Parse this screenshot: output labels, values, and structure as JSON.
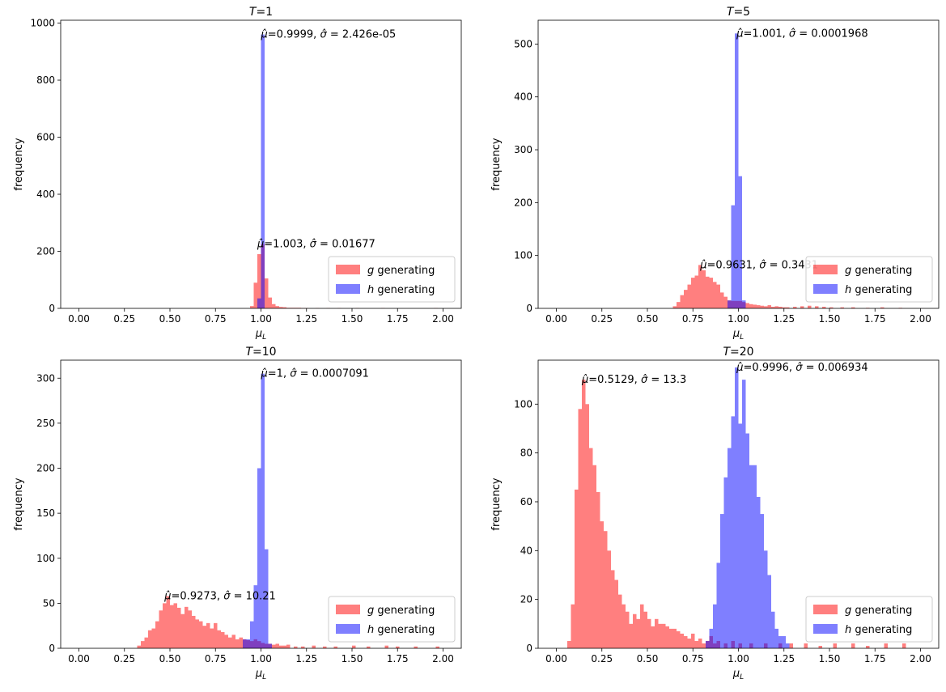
{
  "chart_data": [
    {
      "type": "histogram",
      "title": "T=1",
      "xlabel": "μ_L",
      "ylabel": "frequency",
      "xlim": [
        -0.1,
        2.1
      ],
      "ylim": [
        0,
        1010
      ],
      "xticks": [
        "0.00",
        "0.25",
        "0.50",
        "0.75",
        "1.00",
        "1.25",
        "1.50",
        "1.75",
        "2.00"
      ],
      "yticks": [
        "0",
        "200",
        "400",
        "600",
        "800",
        "1000"
      ],
      "legend": {
        "position": "lower right",
        "entries": [
          "g generating",
          "h generating"
        ]
      },
      "series": [
        {
          "name": "g generating",
          "color": "#ff0000",
          "alpha": 0.5,
          "bin_width": 0.02,
          "bins": [
            [
              0.94,
              8
            ],
            [
              0.96,
              90
            ],
            [
              0.98,
              190
            ],
            [
              1.0,
              225
            ],
            [
              1.02,
              105
            ],
            [
              1.04,
              38
            ],
            [
              1.06,
              15
            ],
            [
              1.08,
              8
            ],
            [
              1.1,
              5
            ],
            [
              1.12,
              4
            ],
            [
              1.14,
              2
            ],
            [
              1.16,
              2
            ],
            [
              1.18,
              2
            ],
            [
              1.2,
              2
            ],
            [
              1.22,
              1
            ],
            [
              1.24,
              1
            ],
            [
              1.3,
              1
            ],
            [
              1.36,
              1
            ],
            [
              1.42,
              1
            ],
            [
              1.52,
              1
            ],
            [
              1.66,
              1
            ],
            [
              1.95,
              1
            ]
          ]
        },
        {
          "name": "h generating",
          "color": "#0000ff",
          "alpha": 0.5,
          "bin_width": 0.02,
          "bins": [
            [
              0.98,
              35
            ],
            [
              1.0,
              960
            ]
          ]
        }
      ],
      "annotations": [
        {
          "text": "μ̂=0.9999, σ̂ = 2.426e-05",
          "x": 1.0,
          "y": 960
        },
        {
          "text": "μ̂=1.003, σ̂ = 0.01677",
          "x": 0.98,
          "y": 225
        }
      ]
    },
    {
      "type": "histogram",
      "title": "T=5",
      "xlabel": "μ_L",
      "ylabel": "frequency",
      "xlim": [
        -0.1,
        2.1
      ],
      "ylim": [
        0,
        545
      ],
      "xticks": [
        "0.00",
        "0.25",
        "0.50",
        "0.75",
        "1.00",
        "1.25",
        "1.50",
        "1.75",
        "2.00"
      ],
      "yticks": [
        "0",
        "100",
        "200",
        "300",
        "400",
        "500"
      ],
      "legend": {
        "position": "lower right",
        "entries": [
          "g generating",
          "h generating"
        ]
      },
      "series": [
        {
          "name": "g generating",
          "color": "#ff0000",
          "alpha": 0.5,
          "bin_width": 0.02,
          "bins": [
            [
              0.64,
              4
            ],
            [
              0.66,
              12
            ],
            [
              0.68,
              25
            ],
            [
              0.7,
              35
            ],
            [
              0.72,
              45
            ],
            [
              0.74,
              58
            ],
            [
              0.76,
              62
            ],
            [
              0.78,
              82
            ],
            [
              0.8,
              72
            ],
            [
              0.82,
              60
            ],
            [
              0.84,
              58
            ],
            [
              0.86,
              50
            ],
            [
              0.88,
              45
            ],
            [
              0.9,
              30
            ],
            [
              0.92,
              22
            ],
            [
              0.94,
              15
            ],
            [
              0.96,
              14
            ],
            [
              0.98,
              14
            ],
            [
              1.0,
              14
            ],
            [
              1.02,
              12
            ],
            [
              1.04,
              10
            ],
            [
              1.06,
              8
            ],
            [
              1.08,
              7
            ],
            [
              1.1,
              6
            ],
            [
              1.12,
              5
            ],
            [
              1.14,
              4
            ],
            [
              1.16,
              6
            ],
            [
              1.18,
              3
            ],
            [
              1.2,
              4
            ],
            [
              1.22,
              3
            ],
            [
              1.24,
              2
            ],
            [
              1.26,
              2
            ],
            [
              1.3,
              3
            ],
            [
              1.34,
              4
            ],
            [
              1.38,
              5
            ],
            [
              1.42,
              4
            ],
            [
              1.46,
              3
            ],
            [
              1.5,
              2
            ],
            [
              1.56,
              2
            ],
            [
              1.62,
              2
            ],
            [
              1.7,
              1
            ],
            [
              1.78,
              2
            ],
            [
              1.88,
              1
            ]
          ]
        },
        {
          "name": "h generating",
          "color": "#0000ff",
          "alpha": 0.5,
          "bin_width": 0.02,
          "bins": [
            [
              0.94,
              15
            ],
            [
              0.96,
              195
            ],
            [
              0.98,
              520
            ],
            [
              1.0,
              250
            ],
            [
              1.02,
              15
            ]
          ]
        }
      ],
      "annotations": [
        {
          "text": "μ̂=1.001, σ̂ = 0.0001968",
          "x": 0.99,
          "y": 520
        },
        {
          "text": "μ̂=0.9631, σ̂ = 0.3431",
          "x": 0.79,
          "y": 82
        }
      ]
    },
    {
      "type": "histogram",
      "title": "T=10",
      "xlabel": "μ_L",
      "ylabel": "frequency",
      "xlim": [
        -0.1,
        2.1
      ],
      "ylim": [
        0,
        320
      ],
      "xticks": [
        "0.00",
        "0.25",
        "0.50",
        "0.75",
        "1.00",
        "1.25",
        "1.50",
        "1.75",
        "2.00"
      ],
      "yticks": [
        "0",
        "50",
        "100",
        "150",
        "200",
        "250",
        "300"
      ],
      "legend": {
        "position": "lower right",
        "entries": [
          "g generating",
          "h generating"
        ]
      },
      "series": [
        {
          "name": "g generating",
          "color": "#ff0000",
          "alpha": 0.5,
          "bin_width": 0.02,
          "bins": [
            [
              0.32,
              3
            ],
            [
              0.34,
              8
            ],
            [
              0.36,
              12
            ],
            [
              0.38,
              20
            ],
            [
              0.4,
              22
            ],
            [
              0.42,
              30
            ],
            [
              0.44,
              42
            ],
            [
              0.46,
              50
            ],
            [
              0.48,
              58
            ],
            [
              0.5,
              48
            ],
            [
              0.52,
              50
            ],
            [
              0.54,
              45
            ],
            [
              0.56,
              38
            ],
            [
              0.58,
              46
            ],
            [
              0.6,
              42
            ],
            [
              0.62,
              36
            ],
            [
              0.64,
              32
            ],
            [
              0.66,
              30
            ],
            [
              0.68,
              25
            ],
            [
              0.7,
              28
            ],
            [
              0.72,
              22
            ],
            [
              0.74,
              28
            ],
            [
              0.76,
              20
            ],
            [
              0.78,
              18
            ],
            [
              0.8,
              15
            ],
            [
              0.82,
              12
            ],
            [
              0.84,
              15
            ],
            [
              0.86,
              10
            ],
            [
              0.88,
              12
            ],
            [
              0.9,
              10
            ],
            [
              0.92,
              9
            ],
            [
              0.94,
              8
            ],
            [
              0.96,
              10
            ],
            [
              0.98,
              8
            ],
            [
              1.0,
              6
            ],
            [
              1.02,
              5
            ],
            [
              1.04,
              5
            ],
            [
              1.06,
              4
            ],
            [
              1.08,
              5
            ],
            [
              1.1,
              3
            ],
            [
              1.12,
              3
            ],
            [
              1.14,
              4
            ],
            [
              1.18,
              2
            ],
            [
              1.22,
              2
            ],
            [
              1.28,
              3
            ],
            [
              1.34,
              2
            ],
            [
              1.4,
              2
            ],
            [
              1.5,
              3
            ],
            [
              1.58,
              2
            ],
            [
              1.68,
              3
            ],
            [
              1.74,
              2
            ],
            [
              1.84,
              2
            ],
            [
              1.96,
              2
            ]
          ]
        },
        {
          "name": "h generating",
          "color": "#0000ff",
          "alpha": 0.5,
          "bin_width": 0.02,
          "bins": [
            [
              0.9,
              10
            ],
            [
              0.92,
              10
            ],
            [
              0.94,
              30
            ],
            [
              0.96,
              70
            ],
            [
              0.98,
              200
            ],
            [
              1.0,
              305
            ],
            [
              1.02,
              110
            ],
            [
              1.04,
              5
            ]
          ]
        }
      ],
      "annotations": [
        {
          "text": "μ̂=1, σ̂ = 0.0007091",
          "x": 1.0,
          "y": 305
        },
        {
          "text": "μ̂=0.9273, σ̂ = 10.21",
          "x": 0.47,
          "y": 58
        }
      ]
    },
    {
      "type": "histogram",
      "title": "T=20",
      "xlabel": "μ_L",
      "ylabel": "frequency",
      "xlim": [
        -0.1,
        2.1
      ],
      "ylim": [
        0,
        118
      ],
      "xticks": [
        "0.00",
        "0.25",
        "0.50",
        "0.75",
        "1.00",
        "1.25",
        "1.50",
        "1.75",
        "2.00"
      ],
      "yticks": [
        "0",
        "20",
        "40",
        "60",
        "80",
        "100"
      ],
      "legend": {
        "position": "lower right",
        "entries": [
          "g generating",
          "h generating"
        ]
      },
      "series": [
        {
          "name": "g generating",
          "color": "#ff0000",
          "alpha": 0.5,
          "bin_width": 0.02,
          "bins": [
            [
              0.06,
              3
            ],
            [
              0.08,
              18
            ],
            [
              0.1,
              65
            ],
            [
              0.12,
              98
            ],
            [
              0.14,
              110
            ],
            [
              0.16,
              100
            ],
            [
              0.18,
              82
            ],
            [
              0.2,
              75
            ],
            [
              0.22,
              64
            ],
            [
              0.24,
              52
            ],
            [
              0.26,
              48
            ],
            [
              0.28,
              40
            ],
            [
              0.3,
              32
            ],
            [
              0.32,
              28
            ],
            [
              0.34,
              22
            ],
            [
              0.36,
              18
            ],
            [
              0.38,
              15
            ],
            [
              0.4,
              10
            ],
            [
              0.42,
              14
            ],
            [
              0.44,
              12
            ],
            [
              0.46,
              18
            ],
            [
              0.48,
              15
            ],
            [
              0.5,
              12
            ],
            [
              0.52,
              9
            ],
            [
              0.54,
              12
            ],
            [
              0.56,
              10
            ],
            [
              0.58,
              10
            ],
            [
              0.6,
              9
            ],
            [
              0.62,
              8
            ],
            [
              0.64,
              8
            ],
            [
              0.66,
              7
            ],
            [
              0.68,
              6
            ],
            [
              0.7,
              5
            ],
            [
              0.72,
              4
            ],
            [
              0.74,
              6
            ],
            [
              0.76,
              3
            ],
            [
              0.78,
              4
            ],
            [
              0.8,
              2
            ],
            [
              0.82,
              3
            ],
            [
              0.84,
              5
            ],
            [
              0.86,
              2
            ],
            [
              0.88,
              3
            ],
            [
              0.92,
              2
            ],
            [
              0.96,
              3
            ],
            [
              1.0,
              2
            ],
            [
              1.06,
              2
            ],
            [
              1.14,
              2
            ],
            [
              1.22,
              2
            ],
            [
              1.28,
              2
            ],
            [
              1.36,
              2
            ],
            [
              1.44,
              1
            ],
            [
              1.52,
              2
            ],
            [
              1.62,
              2
            ],
            [
              1.7,
              1
            ],
            [
              1.8,
              2
            ],
            [
              1.9,
              2
            ]
          ]
        },
        {
          "name": "h generating",
          "color": "#0000ff",
          "alpha": 0.5,
          "bin_width": 0.02,
          "bins": [
            [
              0.82,
              3
            ],
            [
              0.84,
              8
            ],
            [
              0.86,
              18
            ],
            [
              0.88,
              35
            ],
            [
              0.9,
              55
            ],
            [
              0.92,
              70
            ],
            [
              0.94,
              82
            ],
            [
              0.96,
              95
            ],
            [
              0.98,
              115
            ],
            [
              1.0,
              92
            ],
            [
              1.02,
              110
            ],
            [
              1.04,
              88
            ],
            [
              1.06,
              75
            ],
            [
              1.08,
              75
            ],
            [
              1.1,
              62
            ],
            [
              1.12,
              55
            ],
            [
              1.14,
              40
            ],
            [
              1.16,
              30
            ],
            [
              1.18,
              15
            ],
            [
              1.2,
              8
            ],
            [
              1.22,
              5
            ],
            [
              1.24,
              5
            ],
            [
              1.26,
              2
            ]
          ]
        }
      ],
      "annotations": [
        {
          "text": "μ̂=0.9996, σ̂ = 0.006934",
          "x": 0.99,
          "y": 115
        },
        {
          "text": "μ̂=0.5129, σ̂ = 13.3",
          "x": 0.14,
          "y": 110
        }
      ]
    }
  ]
}
